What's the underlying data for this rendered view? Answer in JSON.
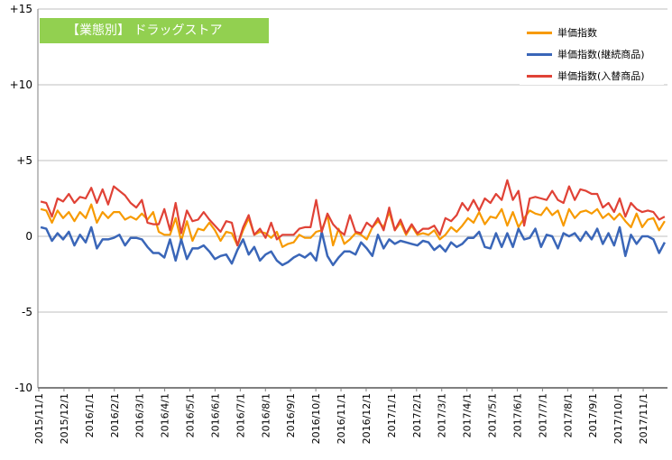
{
  "chart_data": {
    "type": "line",
    "title": "【業態別】 ドラッグストア",
    "xlabel": "",
    "ylabel": "",
    "ylim": [
      -10,
      15
    ],
    "y_ticks": [
      15,
      10,
      5,
      0,
      -5,
      -10
    ],
    "y_tick_labels": [
      "+15",
      "+10",
      "+5",
      "0",
      "-5",
      "-10"
    ],
    "grid": "horizontal",
    "legend_position": "top-right",
    "x_tick_labels": [
      "2015/11/1",
      "2015/12/1",
      "2016/1/1",
      "2016/2/1",
      "2016/3/1",
      "2016/4/1",
      "2016/5/1",
      "2016/6/1",
      "2016/7/1",
      "2016/8/1",
      "2016/9/1",
      "2016/10/1",
      "2016/11/1",
      "2016/12/1",
      "2017/1/1",
      "2017/2/1",
      "2017/3/1",
      "2017/4/1",
      "2017/5/1",
      "2017/6/1",
      "2017/7/1",
      "2017/8/1",
      "2017/9/1",
      "2017/10/1",
      "2017/11/1"
    ],
    "series": [
      {
        "name": "単価指数",
        "color": "#f79a00",
        "values": [
          1.8,
          1.7,
          0.9,
          1.7,
          1.2,
          1.6,
          1.0,
          1.6,
          1.2,
          2.1,
          0.9,
          1.6,
          1.2,
          1.6,
          1.6,
          1.1,
          1.3,
          1.1,
          1.5,
          1.1,
          1.6,
          0.3,
          0.1,
          0.1,
          1.2,
          -0.3,
          1.0,
          -0.3,
          0.5,
          0.4,
          0.9,
          0.4,
          -0.3,
          0.3,
          0.2,
          -0.6,
          0.4,
          1.2,
          0.1,
          0.3,
          0.2,
          -0.1,
          0.3,
          -0.7,
          -0.5,
          -0.4,
          0.1,
          -0.1,
          -0.1,
          0.3,
          0.4,
          1.4,
          -0.6,
          0.5,
          -0.5,
          -0.2,
          0.2,
          0.1,
          -0.2,
          0.6,
          1.0,
          0.6,
          1.6,
          0.4,
          0.9,
          0.1,
          0.7,
          0.1,
          0.2,
          0.1,
          0.4,
          -0.2,
          0.1,
          0.6,
          0.3,
          0.7,
          1.2,
          0.9,
          1.6,
          0.8,
          1.3,
          1.2,
          1.8,
          0.7,
          1.6,
          0.6,
          1.2,
          1.7,
          1.5,
          1.4,
          1.9,
          1.4,
          1.7,
          0.7,
          1.8,
          1.2,
          1.6,
          1.7,
          1.5,
          1.8,
          1.2,
          1.5,
          1.1,
          1.5,
          1.0,
          0.6,
          1.5,
          0.6,
          1.1,
          1.2,
          0.4,
          1.0
        ],
        "bold": false
      },
      {
        "name": "単価指数(継続商品)",
        "color": "#3a66b8",
        "values": [
          0.6,
          0.5,
          -0.3,
          0.2,
          -0.2,
          0.3,
          -0.6,
          0.1,
          -0.4,
          0.6,
          -0.8,
          -0.2,
          -0.2,
          -0.1,
          0.1,
          -0.6,
          -0.1,
          -0.1,
          -0.2,
          -0.7,
          -1.1,
          -1.1,
          -1.4,
          -0.2,
          -1.6,
          -0.2,
          -1.5,
          -0.8,
          -0.8,
          -0.6,
          -1.0,
          -1.5,
          -1.3,
          -1.2,
          -1.8,
          -0.9,
          -0.2,
          -1.2,
          -0.7,
          -1.6,
          -1.2,
          -1.0,
          -1.6,
          -1.9,
          -1.7,
          -1.4,
          -1.2,
          -1.4,
          -1.1,
          -1.6,
          0.3,
          -1.3,
          -1.9,
          -1.4,
          -1.0,
          -1.0,
          -1.2,
          -0.4,
          -0.8,
          -1.3,
          0.1,
          -0.8,
          -0.2,
          -0.5,
          -0.3,
          -0.4,
          -0.5,
          -0.6,
          -0.3,
          -0.4,
          -0.9,
          -0.6,
          -1.0,
          -0.4,
          -0.7,
          -0.5,
          -0.1,
          -0.1,
          0.3,
          -0.7,
          -0.8,
          0.2,
          -0.7,
          0.2,
          -0.7,
          0.5,
          -0.2,
          -0.1,
          0.5,
          -0.7,
          0.1,
          0.0,
          -0.8,
          0.2,
          0.0,
          0.2,
          -0.3,
          0.3,
          -0.2,
          0.5,
          -0.5,
          0.2,
          -0.6,
          0.6,
          -1.3,
          0.1,
          -0.5,
          0.0,
          0.0,
          -0.2,
          -1.1,
          -0.4
        ],
        "bold": true
      },
      {
        "name": "単価指数(入替商品)",
        "color": "#e04236",
        "values": [
          2.3,
          2.2,
          1.3,
          2.5,
          2.3,
          2.8,
          2.2,
          2.6,
          2.5,
          3.2,
          2.2,
          3.1,
          2.1,
          3.3,
          3.0,
          2.7,
          2.2,
          1.9,
          2.4,
          0.9,
          0.8,
          0.8,
          1.8,
          0.4,
          2.2,
          0.2,
          1.7,
          1.0,
          1.1,
          1.6,
          1.1,
          0.7,
          0.3,
          1.0,
          0.9,
          -0.6,
          0.6,
          1.4,
          0.1,
          0.5,
          -0.1,
          0.9,
          -0.2,
          0.1,
          0.1,
          0.1,
          0.5,
          0.6,
          0.6,
          2.4,
          0.3,
          1.5,
          0.8,
          0.4,
          0.1,
          1.4,
          0.3,
          0.2,
          0.9,
          0.6,
          1.2,
          0.4,
          1.9,
          0.4,
          1.1,
          0.2,
          0.8,
          0.2,
          0.5,
          0.5,
          0.7,
          0.1,
          1.2,
          1.0,
          1.4,
          2.2,
          1.7,
          2.4,
          1.7,
          2.5,
          2.2,
          2.8,
          2.4,
          3.7,
          2.4,
          3.0,
          0.7,
          2.5,
          2.6,
          2.5,
          2.4,
          3.0,
          2.4,
          2.2,
          3.3,
          2.4,
          3.1,
          3.0,
          2.8,
          2.8,
          1.9,
          2.2,
          1.6,
          2.5,
          1.3,
          2.2,
          1.8,
          1.6,
          1.7,
          1.6,
          1.1,
          1.3
        ],
        "bold": false
      }
    ]
  }
}
